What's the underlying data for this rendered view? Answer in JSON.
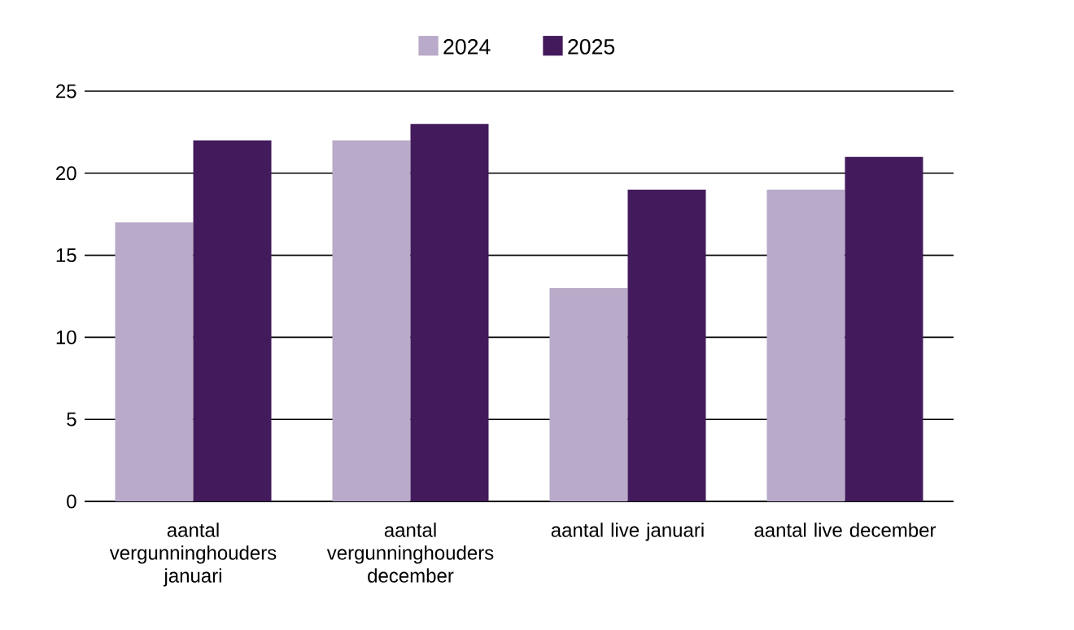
{
  "chart_data": {
    "type": "bar",
    "categories": [
      "aantal vergunninghouders januari",
      "aantal vergunninghouders december",
      "aantal live januari",
      "aantal live december"
    ],
    "series": [
      {
        "name": "2024",
        "color": "#b8aac8",
        "values": [
          17,
          22,
          13,
          19
        ]
      },
      {
        "name": "2025",
        "color": "#431a5c",
        "values": [
          22,
          23,
          19,
          21
        ]
      }
    ],
    "ylim": [
      0,
      25
    ],
    "yticks": [
      0,
      5,
      10,
      15,
      20,
      25
    ],
    "grid": "y",
    "legend": "top"
  }
}
